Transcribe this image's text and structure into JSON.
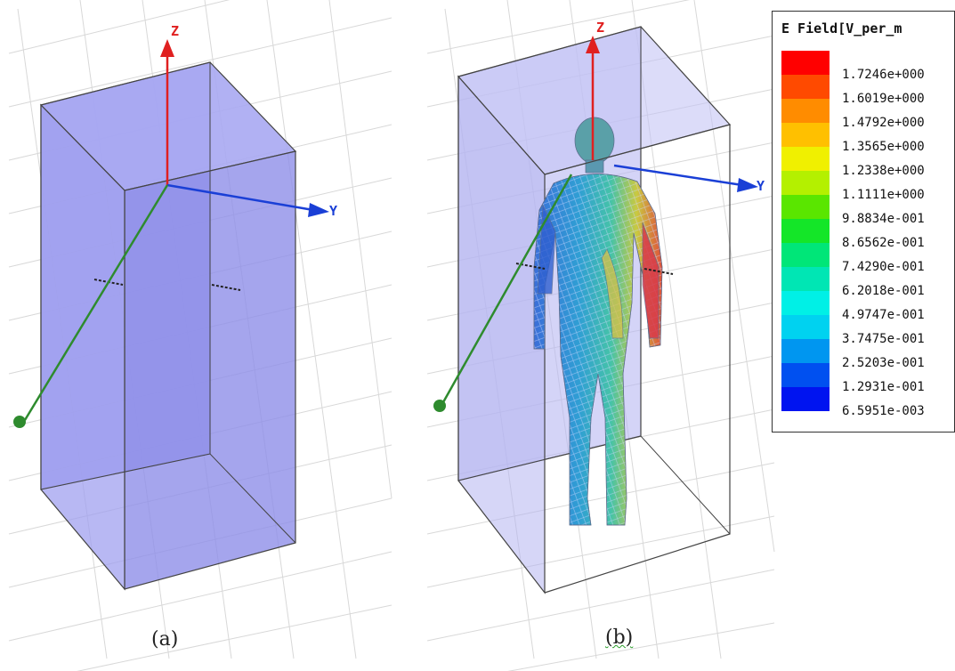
{
  "panel_a": {
    "axes": {
      "z": "Z",
      "y": "Y"
    },
    "caption": "(a)"
  },
  "panel_b": {
    "axes": {
      "z": "Z",
      "y": "Y"
    },
    "caption": "(b)"
  },
  "legend": {
    "title": "E Field[V_per_m",
    "entries": [
      {
        "value": "1.7246e+000",
        "color": "#ff0000"
      },
      {
        "value": "1.6019e+000",
        "color": "#ff4a00"
      },
      {
        "value": "1.4792e+000",
        "color": "#ff8c00"
      },
      {
        "value": "1.3565e+000",
        "color": "#ffc000"
      },
      {
        "value": "1.2338e+000",
        "color": "#f0f000"
      },
      {
        "value": "1.1111e+000",
        "color": "#b4f000"
      },
      {
        "value": "9.8834e-001",
        "color": "#5ae600"
      },
      {
        "value": "8.6562e-001",
        "color": "#14e628"
      },
      {
        "value": "7.4290e-001",
        "color": "#00e678"
      },
      {
        "value": "6.2018e-001",
        "color": "#00e6b4"
      },
      {
        "value": "4.9747e-001",
        "color": "#00f0e6"
      },
      {
        "value": "3.7475e-001",
        "color": "#00d2f0"
      },
      {
        "value": "2.5203e-001",
        "color": "#0096f0"
      },
      {
        "value": "1.2931e-001",
        "color": "#0050f0"
      },
      {
        "value": "6.5951e-003",
        "color": "#0014f0"
      }
    ]
  },
  "colors": {
    "box_fill": "#9d9df0",
    "z_axis": "#e02020",
    "y_axis": "#1a3fd6",
    "x_axis": "#2e8b2e",
    "grid": "#d8d8d8"
  }
}
